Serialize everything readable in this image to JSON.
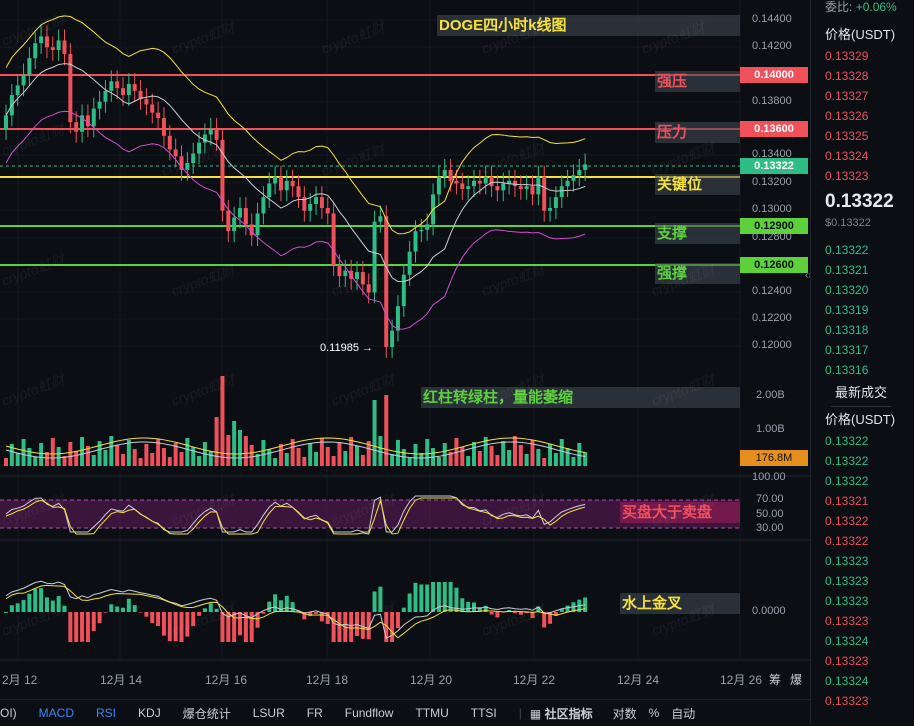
{
  "chart_title": "DOGE四小时k线图",
  "price_axis": {
    "labels": [
      "0.14400",
      "0.14200",
      "0.13800",
      "0.13400",
      "0.13200",
      "0.13000",
      "0.12800",
      "0.12400",
      "0.12200",
      "0.12000"
    ]
  },
  "levels": [
    {
      "name": "strong-resistance",
      "price": "0.14000",
      "label": "强压",
      "color": "#f0505a"
    },
    {
      "name": "resistance",
      "price": "0.13600",
      "label": "压力",
      "color": "#f0505a"
    },
    {
      "name": "key",
      "price": "0.13322",
      "label": "关键位",
      "color": "#f6e13a"
    },
    {
      "name": "support",
      "price": "0.12900",
      "label": "支撑",
      "color": "#5cd13b"
    },
    {
      "name": "strong-support",
      "price": "0.12600",
      "label": "强撑",
      "color": "#5cd13b"
    }
  ],
  "current_price_tag": "0.13322",
  "low_marker": "0.11985 →",
  "volume": {
    "axis": [
      "2.00B",
      "1.00B"
    ],
    "current": "176.8M",
    "note": "红柱转绿柱，量能萎缩"
  },
  "rsi": {
    "axis": [
      "100.00",
      "70.00",
      "50.00",
      "30.00"
    ],
    "note": "买盘大于卖盘"
  },
  "macd": {
    "axis": [
      "0.0000"
    ],
    "note": "水上金叉"
  },
  "dates": [
    "2月 12",
    "12月 14",
    "12月 16",
    "12月 18",
    "12月 20",
    "12月 22",
    "12月 24",
    "12月 26"
  ],
  "bottom_tabs": [
    {
      "label": "OI)",
      "active": false
    },
    {
      "label": "MACD",
      "active": true
    },
    {
      "label": "RSI",
      "active": true
    },
    {
      "label": "KDJ",
      "active": false
    },
    {
      "label": "爆仓统计",
      "active": false
    },
    {
      "label": "LSUR",
      "active": false
    },
    {
      "label": "FR",
      "active": false
    },
    {
      "label": "Fundflow",
      "active": false
    },
    {
      "label": "TTMU",
      "active": false
    },
    {
      "label": "TTSI",
      "active": false
    }
  ],
  "bottom_right": {
    "community": "社区指标",
    "log": "对数",
    "pct": "%",
    "auto": "自动",
    "corner1": "筹",
    "corner2": "爆"
  },
  "watermark": "crypto虹财",
  "right_panel": {
    "ratio_label": "委比:",
    "ratio_value": "+0.06%",
    "header": "价格(USDT)",
    "asks": [
      "0.13329",
      "0.13328",
      "0.13327",
      "0.13326",
      "0.13325",
      "0.13324",
      "0.13323"
    ],
    "last_price": "0.13322",
    "last_usd": "$0.13322",
    "bids": [
      "0.13322",
      "0.13321",
      "0.13320",
      "0.13319",
      "0.13318",
      "0.13317",
      "0.13316"
    ],
    "trades_title": "最新成交",
    "trades_header": "价格(USDT)",
    "trades": [
      {
        "p": "0.13322",
        "side": "green"
      },
      {
        "p": "0.13322",
        "side": "green"
      },
      {
        "p": "0.13322",
        "side": "green"
      },
      {
        "p": "0.13321",
        "side": "red"
      },
      {
        "p": "0.13322",
        "side": "red"
      },
      {
        "p": "0.13322",
        "side": "red"
      },
      {
        "p": "0.13323",
        "side": "green"
      },
      {
        "p": "0.13323",
        "side": "green"
      },
      {
        "p": "0.13323",
        "side": "green"
      },
      {
        "p": "0.13323",
        "side": "red"
      },
      {
        "p": "0.13324",
        "side": "green"
      },
      {
        "p": "0.13323",
        "side": "red"
      },
      {
        "p": "0.13324",
        "side": "green"
      },
      {
        "p": "0.13323",
        "side": "red"
      }
    ]
  }
}
